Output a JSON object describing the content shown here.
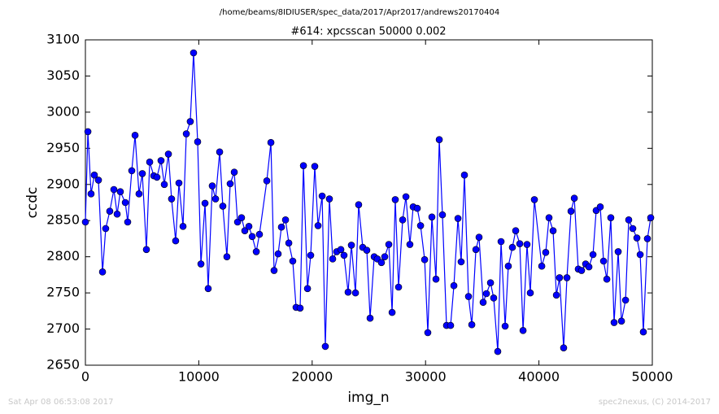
{
  "page": {
    "path": "/home/beams/8IDIUSER/spec_data/2017/Apr2017/andrews20170404",
    "timestamp": "Sat Apr 08 06:53:08 2017",
    "credit": "spec2nexus, (C) 2014-2017"
  },
  "chart_data": {
    "type": "line",
    "title": "#614: xpcsscan 50000 0.002",
    "x_label": "img_n",
    "y_label": "ccdc",
    "xlim": [
      0,
      50000
    ],
    "xticks": [
      0,
      10000,
      20000,
      30000,
      40000,
      50000
    ],
    "ylim": [
      2650,
      3100
    ],
    "yticks": [
      2650,
      2700,
      2750,
      2800,
      2850,
      2900,
      2950,
      3000,
      3050,
      3100
    ],
    "grid": false,
    "marker": "circle",
    "x": [
      0,
      220,
      500,
      790,
      1150,
      1510,
      1790,
      2150,
      2510,
      2800,
      3080,
      3520,
      3730,
      4090,
      4380,
      4730,
      5020,
      5380,
      5670,
      6030,
      6310,
      6670,
      6960,
      7320,
      7600,
      7960,
      8250,
      8610,
      8900,
      9250,
      9540,
      9900,
      10190,
      10550,
      10830,
      11190,
      11480,
      11840,
      12120,
      12480,
      12770,
      13130,
      13420,
      13770,
      14060,
      14420,
      14710,
      15070,
      15350,
      16000,
      16360,
      16640,
      17000,
      17290,
      17650,
      17940,
      18290,
      18580,
      18940,
      19230,
      19590,
      19870,
      20230,
      20520,
      20880,
      21160,
      21520,
      21810,
      22170,
      22530,
      22810,
      23170,
      23460,
      23820,
      24100,
      24460,
      24820,
      25110,
      25470,
      25750,
      26110,
      26400,
      26760,
      27050,
      27330,
      27620,
      27980,
      28270,
      28620,
      28910,
      29270,
      29560,
      29920,
      30200,
      30560,
      30920,
      31210,
      31490,
      31850,
      32210,
      32500,
      32860,
      33140,
      33430,
      33790,
      34080,
      34440,
      34720,
      35080,
      35370,
      35730,
      36010,
      36370,
      36660,
      37020,
      37300,
      37660,
      37950,
      38310,
      38600,
      38950,
      39240,
      39600,
      40250,
      40600,
      40890,
      41250,
      41540,
      41820,
      42180,
      42470,
      42830,
      43120,
      43470,
      43760,
      44120,
      44410,
      44770,
      45050,
      45410,
      45700,
      45990,
      46340,
      46630,
      46990,
      47280,
      47640,
      47920,
      48280,
      48640,
      48930,
      49210,
      49570,
      49860
    ],
    "series": [
      {
        "name": "ccdc",
        "color": "#0000ff",
        "values": [
          2848,
          2973,
          2887,
          2913,
          2906,
          2779,
          2839,
          2863,
          2893,
          2859,
          2890,
          2875,
          2848,
          2919,
          2968,
          2887,
          2915,
          2810,
          2931,
          2912,
          2910,
          2933,
          2900,
          2942,
          2880,
          2822,
          2902,
          2842,
          2970,
          2987,
          3082,
          2959,
          2790,
          2874,
          2756,
          2898,
          2880,
          2945,
          2870,
          2800,
          2901,
          2917,
          2848,
          2854,
          2836,
          2842,
          2828,
          2807,
          2831,
          2905,
          2958,
          2781,
          2804,
          2841,
          2851,
          2819,
          2794,
          2730,
          2729,
          2926,
          2756,
          2802,
          2925,
          2843,
          2884,
          2676,
          2880,
          2797,
          2807,
          2810,
          2802,
          2751,
          2816,
          2750,
          2872,
          2813,
          2809,
          2715,
          2800,
          2797,
          2792,
          2800,
          2817,
          2723,
          2879,
          2758,
          2851,
          2883,
          2817,
          2869,
          2867,
          2843,
          2796,
          2695,
          2855,
          2769,
          2962,
          2858,
          2705,
          2705,
          2760,
          2853,
          2793,
          2913,
          2745,
          2706,
          2810,
          2827,
          2737,
          2749,
          2764,
          2743,
          2669,
          2821,
          2704,
          2787,
          2813,
          2836,
          2818,
          2698,
          2817,
          2750,
          2879,
          2787,
          2806,
          2854,
          2836,
          2747,
          2771,
          2674,
          2771,
          2863,
          2881,
          2783,
          2781,
          2790,
          2786,
          2803,
          2864,
          2869,
          2794,
          2769,
          2854,
          2709,
          2807,
          2711,
          2740,
          2851,
          2839,
          2826,
          2803,
          2696,
          2825,
          2854
        ]
      }
    ]
  }
}
